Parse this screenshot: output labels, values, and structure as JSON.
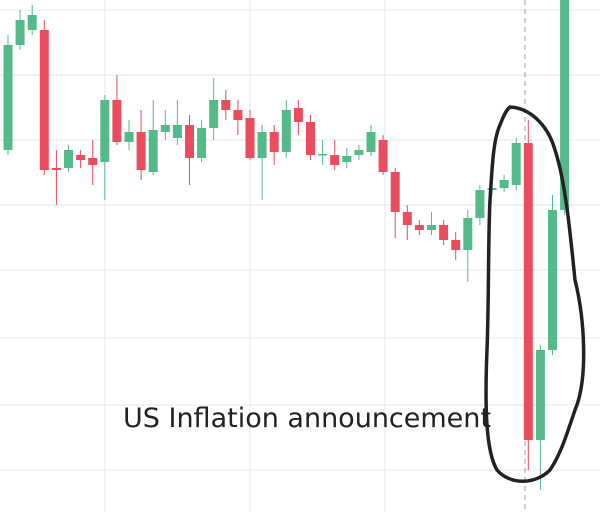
{
  "chart_data": {
    "type": "candlestick",
    "annotation": "US Inflation announcement",
    "up_color": "#56b98a",
    "down_color": "#ea4e5e",
    "ylim": [
      0,
      512
    ],
    "series": {
      "open": [
        362,
        467,
        482,
        482,
        344,
        344,
        357,
        354,
        350,
        412,
        370,
        380,
        340,
        380,
        374,
        387,
        354,
        384,
        412,
        402,
        394,
        354,
        380,
        360,
        404,
        390,
        357,
        357,
        350,
        357,
        360,
        372,
        340,
        300,
        287,
        282,
        287,
        272,
        262,
        294,
        322,
        324,
        327,
        369,
        72,
        162,
        302
      ],
      "high": [
        477,
        502,
        507,
        492,
        362,
        367,
        362,
        372,
        417,
        437,
        392,
        402,
        412,
        402,
        412,
        397,
        392,
        434,
        422,
        412,
        402,
        387,
        387,
        412,
        412,
        397,
        372,
        372,
        364,
        367,
        387,
        377,
        344,
        307,
        292,
        300,
        292,
        280,
        302,
        327,
        330,
        337,
        374,
        392,
        167,
        317,
        512
      ],
      "low": [
        357,
        462,
        477,
        337,
        307,
        340,
        344,
        327,
        312,
        367,
        362,
        332,
        337,
        372,
        367,
        327,
        350,
        372,
        392,
        377,
        352,
        312,
        347,
        354,
        377,
        352,
        347,
        342,
        344,
        352,
        356,
        337,
        274,
        272,
        277,
        277,
        267,
        252,
        230,
        287,
        317,
        320,
        322,
        42,
        22,
        157,
        297
      ],
      "close": [
        467,
        492,
        497,
        342,
        342,
        362,
        352,
        347,
        412,
        370,
        380,
        342,
        382,
        387,
        387,
        354,
        384,
        412,
        402,
        392,
        354,
        380,
        360,
        402,
        390,
        357,
        358,
        347,
        356,
        362,
        380,
        340,
        300,
        287,
        282,
        287,
        272,
        262,
        294,
        322,
        324,
        332,
        369,
        72,
        162,
        302,
        512
      ]
    }
  }
}
